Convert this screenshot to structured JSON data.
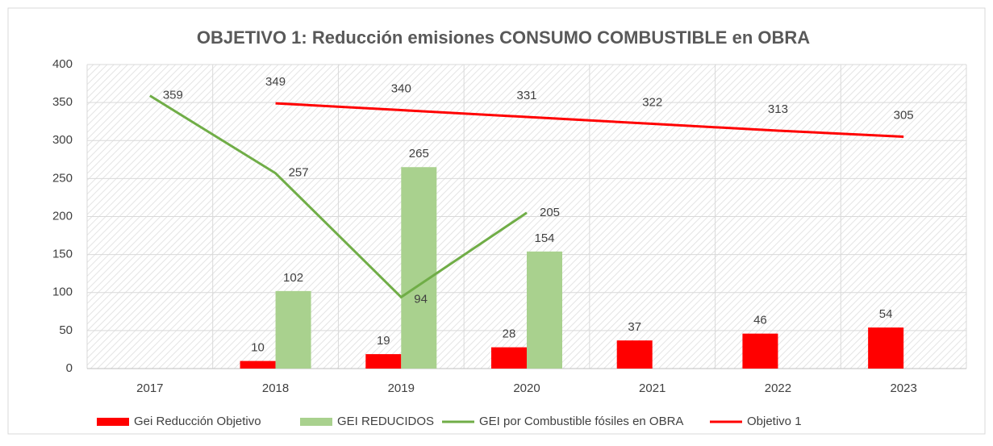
{
  "chart_data": {
    "type": "bar",
    "title": "OBJETIVO 1: Reducción emisiones CONSUMO COMBUSTIBLE en OBRA",
    "categories": [
      "2017",
      "2018",
      "2019",
      "2020",
      "2021",
      "2022",
      "2023"
    ],
    "series": [
      {
        "name": "Gei Reducción Objetivo",
        "type": "bar",
        "color": "#ff0000",
        "values": [
          null,
          10,
          19,
          28,
          37,
          46,
          54
        ]
      },
      {
        "name": "GEI REDUCIDOS",
        "type": "bar",
        "color": "#a9d18e",
        "values": [
          null,
          102,
          265,
          154,
          null,
          null,
          null
        ]
      },
      {
        "name": "GEI por Combustible fósiles en OBRA",
        "type": "line",
        "color": "#70ad47",
        "values": [
          359,
          257,
          94,
          205,
          null,
          null,
          null
        ]
      },
      {
        "name": "Objetivo 1",
        "type": "line",
        "color": "#ff0000",
        "values": [
          null,
          349,
          340,
          331,
          322,
          313,
          305
        ]
      }
    ],
    "ylim": [
      0,
      400
    ],
    "yticks": [
      0,
      50,
      100,
      150,
      200,
      250,
      300,
      350,
      400
    ],
    "grid": true,
    "legend": "bottom"
  }
}
